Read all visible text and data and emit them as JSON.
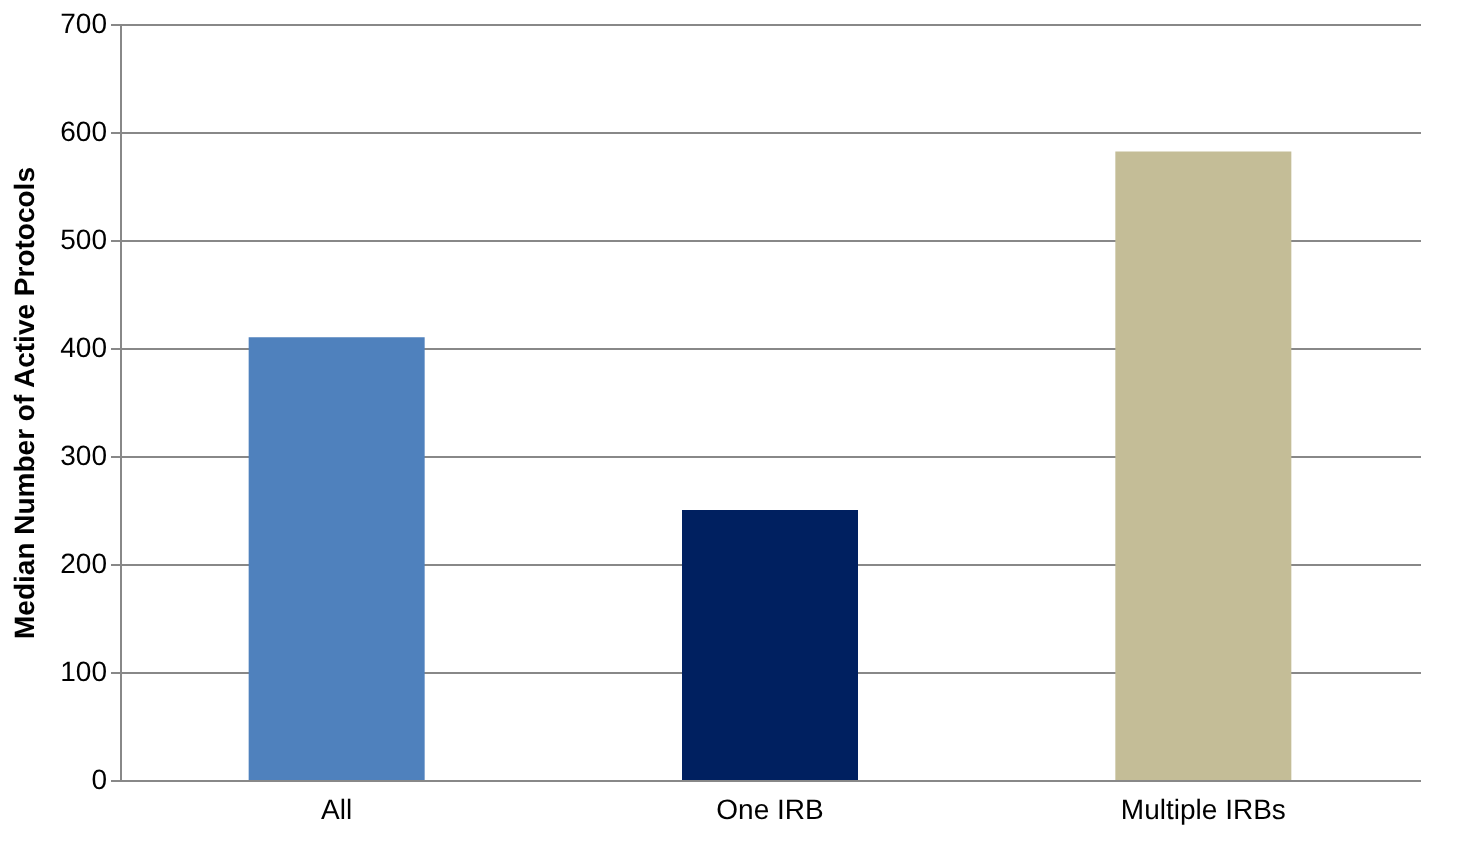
{
  "chart_data": {
    "type": "bar",
    "ylabel": "Median Number of Active Protocols",
    "categories": [
      "All",
      "One IRB",
      "Multiple IRBs"
    ],
    "values": [
      410,
      250,
      582
    ],
    "colors": [
      "#4f81bd",
      "#002060",
      "#c4bd97"
    ],
    "ylim": [
      0,
      700
    ],
    "yticks": [
      0,
      100,
      200,
      300,
      400,
      500,
      600,
      700
    ],
    "grid": "y"
  }
}
